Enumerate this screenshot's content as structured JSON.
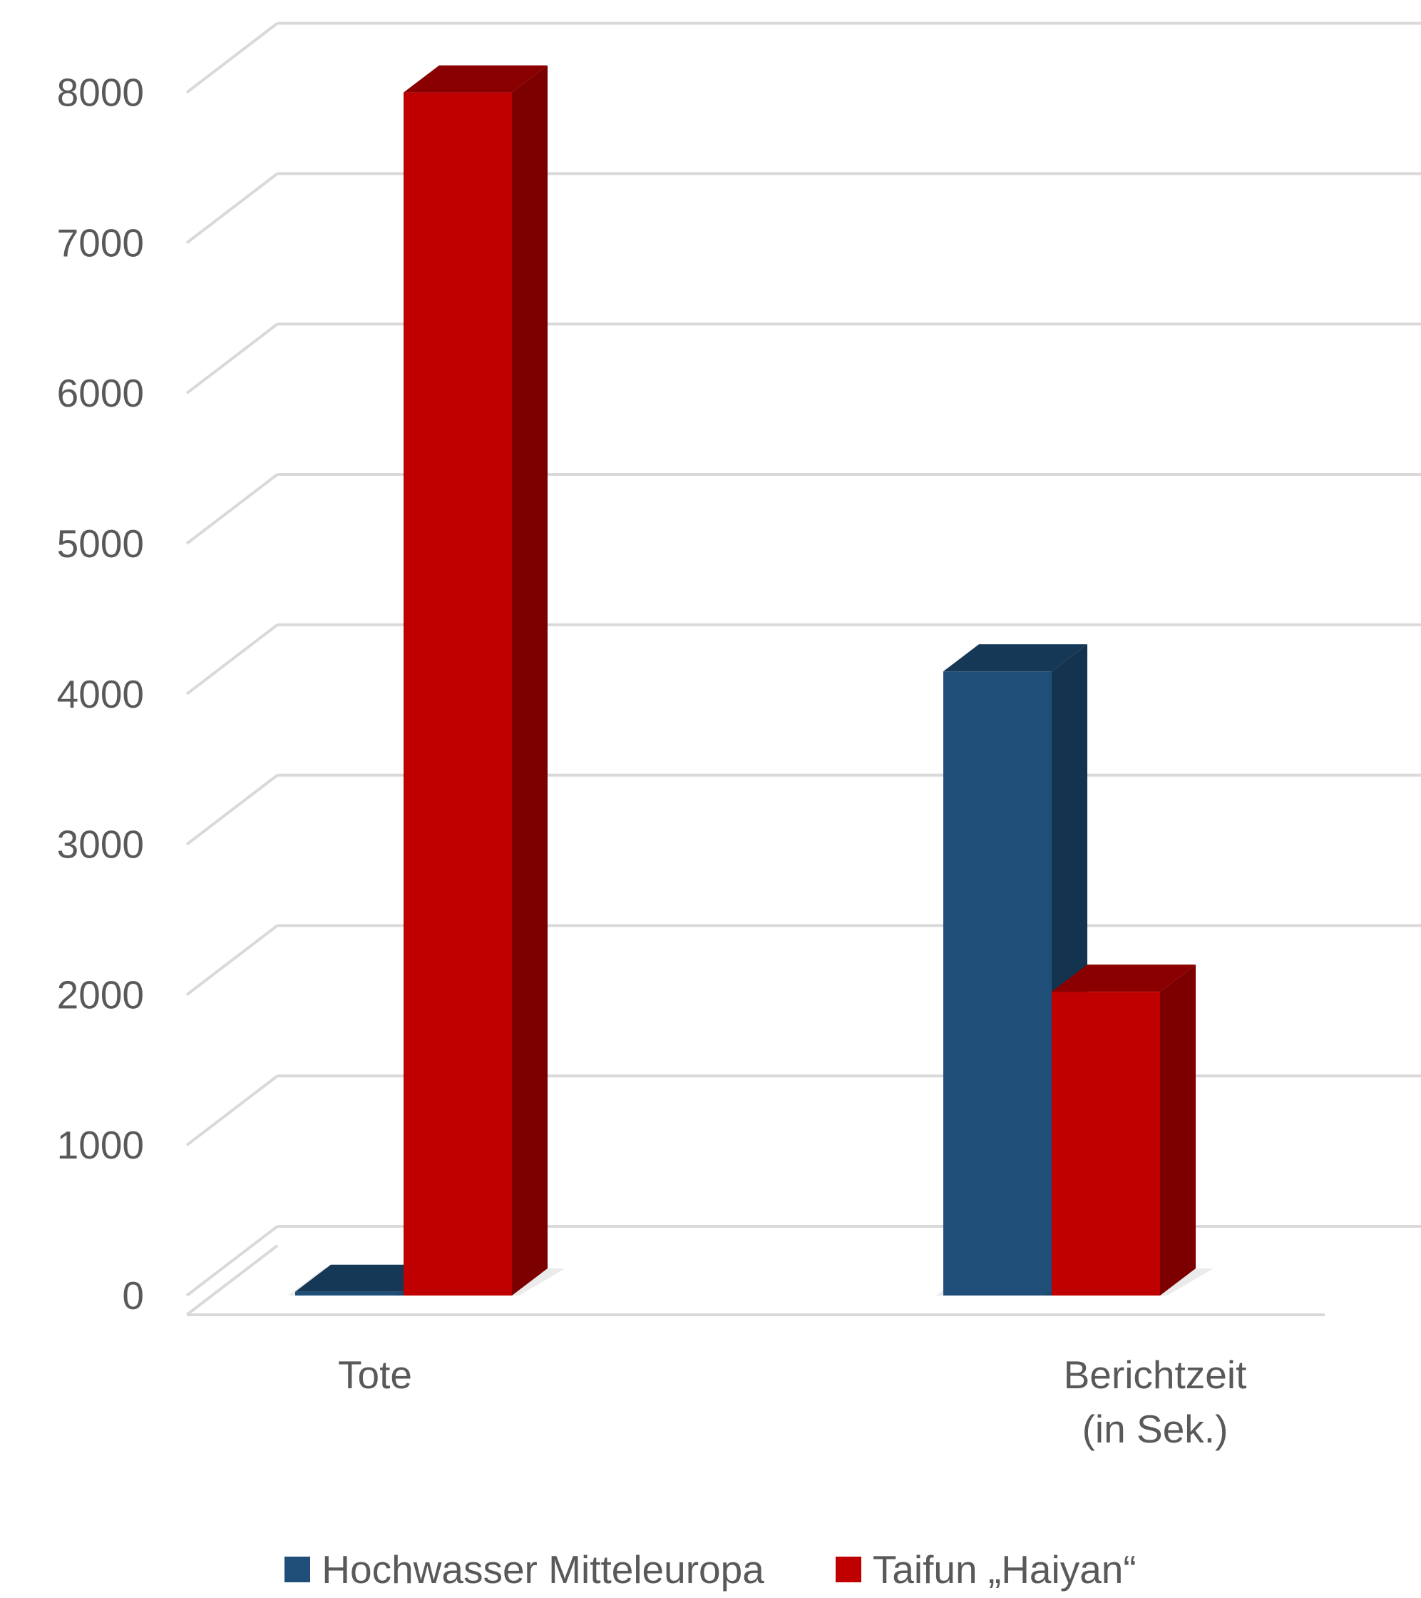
{
  "chart_data": {
    "type": "bar",
    "style": "3d-clustered-column",
    "categories": [
      "Tote",
      "Berichtzeit\n(in Sek.)"
    ],
    "series": [
      {
        "name": "Hochwasser Mitteleuropa",
        "color": "#1f4e79",
        "values": [
          25,
          4150
        ]
      },
      {
        "name": "Taifun „Haiyan“",
        "color": "#c00000",
        "values": [
          8000,
          2020
        ]
      }
    ],
    "ylim": [
      0,
      8000
    ],
    "yticks": [
      0,
      1000,
      2000,
      3000,
      4000,
      5000,
      6000,
      7000,
      8000
    ],
    "grid": true,
    "legend_position": "bottom"
  }
}
